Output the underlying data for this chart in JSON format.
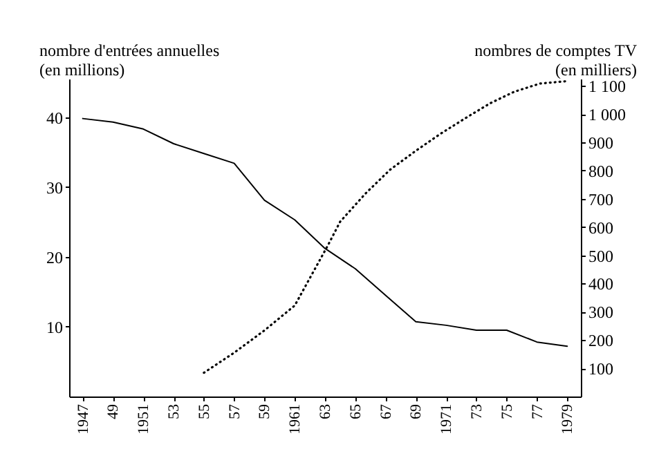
{
  "chart_data": {
    "type": "line",
    "ylabel": "nombre d'entrées annuelles\n(en millions)",
    "y2label": "nombres de comptes TV\n(en milliers)",
    "series": [
      {
        "color": "#000000",
        "line_style": "solid",
        "x": [
          1947,
          1949,
          1951,
          1953,
          1955,
          1957,
          1959,
          1961,
          1963,
          1965,
          1967,
          1969,
          1971,
          1973,
          1975,
          1977,
          1979
        ],
        "values": [
          39.8,
          39.3,
          38.3,
          36.2,
          34.8,
          33.4,
          28.1,
          25.3,
          21.2,
          18.3,
          14.5,
          10.7,
          10.2,
          9.5,
          9.5,
          7.8,
          7.2
        ]
      },
      {
        "color": "#000000",
        "line_style": "dotted",
        "axis": "y2",
        "x": [
          1955,
          1957,
          1959,
          1961,
          1963.2,
          1964,
          1965.7,
          1967.3,
          1969,
          1970.6,
          1972.2,
          1973.9,
          1975.5,
          1977.2,
          1979.1
        ],
        "values": [
          84,
          155,
          234,
          322,
          536,
          619,
          720,
          803,
          870,
          929,
          983,
          1038,
          1079,
          1108,
          1117
        ]
      }
    ],
    "xlim": [
      1946.1,
      1979.9
    ],
    "xticks": [
      1947,
      {
        "value": 1949,
        "label": "49"
      },
      1951,
      {
        "value": 1953,
        "label": "53"
      },
      {
        "value": 1955,
        "label": "55"
      },
      {
        "value": 1957,
        "label": "57"
      },
      {
        "value": 1959,
        "label": "59"
      },
      1961,
      {
        "value": 1963,
        "label": "63"
      },
      {
        "value": 1965,
        "label": "65"
      },
      {
        "value": 1967,
        "label": "67"
      },
      {
        "value": 1969,
        "label": "69"
      },
      1971,
      {
        "value": 1973,
        "label": "73"
      },
      {
        "value": 1975,
        "label": "75"
      },
      {
        "value": 1977,
        "label": "77"
      },
      1979
    ],
    "ylim": [
      0,
      45.5
    ],
    "yticks": [
      10,
      20,
      30,
      40
    ],
    "y2lim": [
      0,
      1125
    ],
    "y2ticks": [
      100,
      200,
      300,
      400,
      500,
      600,
      700,
      800,
      900,
      {
        "value": 1000,
        "label": "1 000"
      },
      {
        "value": 1100,
        "label": "1 100"
      }
    ],
    "grid": false,
    "marker": "none"
  }
}
